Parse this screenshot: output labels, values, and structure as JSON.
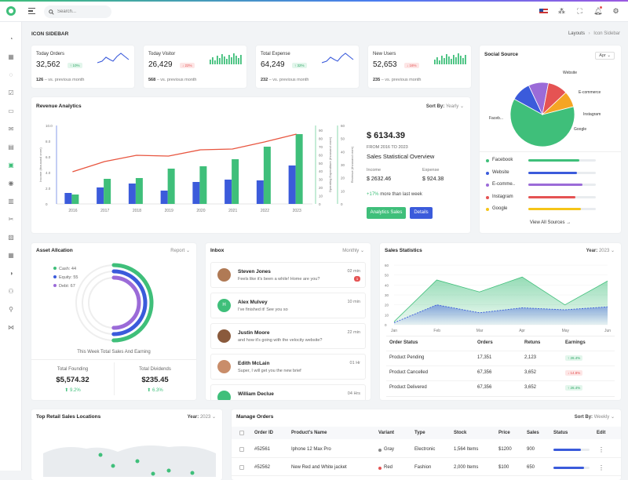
{
  "colors": {
    "accent": "#3fbf7a",
    "blue": "#3b5bdb",
    "red": "#e55353",
    "purple": "#9b6bd8",
    "orange": "#f5a524",
    "yellow": "#f5c518"
  },
  "search": {
    "placeholder": "Search..."
  },
  "page": {
    "title": "ICON SIDEBAR",
    "breadcrumb": [
      "Layouts",
      "Icon Sidebar"
    ]
  },
  "stats": [
    {
      "label": "Today Orders",
      "value": "32,562",
      "badge": "↑ 10%",
      "trend": "up",
      "footer_value": "126",
      "footer_text": "– vs. previous month",
      "spark": "line",
      "color": "#3b5bdb"
    },
    {
      "label": "Today Visitor",
      "value": "26,429",
      "badge": "↓ 22%",
      "trend": "down",
      "footer_value": "568",
      "footer_text": "– vs. previous month",
      "spark": "bar",
      "color": "#3fbf7a"
    },
    {
      "label": "Total Expense",
      "value": "64,249",
      "badge": "↑ 32%",
      "trend": "up",
      "footer_value": "232",
      "footer_text": "– vs. previous month",
      "spark": "line",
      "color": "#3b5bdb"
    },
    {
      "label": "New Users",
      "value": "52,653",
      "badge": "↓ 16%",
      "trend": "down",
      "footer_value": "235",
      "footer_text": "– vs. previous month",
      "spark": "bar",
      "color": "#3fbf7a"
    }
  ],
  "social": {
    "title": "Social Source",
    "select": "Apr",
    "footer": "View All Sources →",
    "items": [
      {
        "name": "Facebook",
        "color": "#3fbf7a",
        "value": 0.75
      },
      {
        "name": "Website",
        "color": "#3b5bdb",
        "value": 0.72
      },
      {
        "name": "E-commerce",
        "short": "E-comme..",
        "color": "#9b6bd8",
        "value": 0.8
      },
      {
        "name": "Instagram",
        "color": "#e55353",
        "value": 0.7
      },
      {
        "name": "Google",
        "color": "#f5c518",
        "value": 0.78
      }
    ],
    "pie_labels": [
      "Faceb...",
      "Website",
      "E-commerce",
      "Instagram",
      "Google"
    ]
  },
  "revenue": {
    "title": "Revenue Analytics",
    "sort_label": "Sort By:",
    "sort_value": "Yearly",
    "amount": "$ 6134.39",
    "range": "FROM 2016 TO 2023",
    "subtitle": "Sales Statistical Overview",
    "income_label": "Income",
    "income_value": "$ 2632.46",
    "expense_label": "Expense",
    "expense_value": "$ 924.38",
    "change_pct": "+17%",
    "change_text": "more than last week",
    "btn_analytics": "Analytics Sales",
    "btn_details": "Details",
    "ylabel_left": "Income (thousand crore)",
    "ylabel_mid": "Operating Expenditure (thousand crore)",
    "ylabel_right": "Revenue (thousand crore)"
  },
  "chart_data": [
    {
      "type": "bar",
      "title": "Revenue Analytics",
      "categories": [
        "2016",
        "2017",
        "2018",
        "2019",
        "2020",
        "2021",
        "2022",
        "2023"
      ],
      "ylim_left": [
        0,
        10
      ],
      "yticks_left": [
        "0",
        "2.0",
        "4.0",
        "6.0",
        "8.0",
        "10.0"
      ],
      "ylim_mid": [
        0,
        100
      ],
      "yticks_mid": [
        "0",
        "10",
        "20",
        "30",
        "40",
        "50",
        "60",
        "70",
        "80",
        "90"
      ],
      "ylim_right": [
        0,
        60
      ],
      "yticks_right": [
        "0",
        "10",
        "20",
        "30",
        "40",
        "50",
        "60"
      ],
      "series": [
        {
          "color": "#3b5bdb",
          "values": [
            1.4,
            2.1,
            2.6,
            1.7,
            2.8,
            3.1,
            3.0,
            4.9
          ]
        },
        {
          "color": "#3fbf7a",
          "values": [
            1.2,
            3.2,
            3.3,
            4.5,
            4.8,
            5.7,
            7.3,
            8.9
          ]
        },
        {
          "color": "#e8553f",
          "values": [
            4.1,
            5.4,
            6.2,
            6.1,
            6.9,
            7.0,
            7.9,
            8.9
          ]
        }
      ]
    },
    {
      "type": "area",
      "title": "Sales Statistics",
      "categories": [
        "Jan",
        "Feb",
        "Mar",
        "Apr",
        "May",
        "Jun"
      ],
      "ylim": [
        0,
        60
      ],
      "yticks": [
        "0",
        "10",
        "20",
        "30",
        "40",
        "50",
        "60"
      ],
      "series": [
        {
          "color": "#3fbf7a",
          "values": [
            3,
            45,
            33,
            48,
            20,
            44
          ]
        },
        {
          "color": "#3b5bdb",
          "values": [
            2,
            20,
            12,
            17,
            15,
            18
          ]
        }
      ]
    }
  ],
  "asset": {
    "title": "Asset Allcation",
    "select": "Report",
    "legend": [
      {
        "label": "Cash: 44",
        "color": "#3fbf7a",
        "value": 44
      },
      {
        "label": "Equity: 55",
        "color": "#3b5bdb",
        "value": 55
      },
      {
        "label": "Debt: 67",
        "color": "#9b6bd8",
        "value": 67
      }
    ],
    "caption": "This Week Total Sales And Earning",
    "founding_label": "Total Founding",
    "founding_value": "$5,574.32",
    "founding_pct": "9.2%",
    "dividends_label": "Total Dividends",
    "dividends_value": "$235.45",
    "dividends_pct": "6.3%"
  },
  "inbox": {
    "title": "Inbox",
    "select": "Monthly",
    "messages": [
      {
        "name": "Steven Jones",
        "text": "Feels like it's been a while! Home are you?",
        "time": "02 min",
        "unread": "1",
        "avatar": "photo",
        "color": "#b07a55"
      },
      {
        "name": "Alex Mulvey",
        "text": "I've finished it! See you so",
        "time": "10 min",
        "avatar": "H",
        "color": "#3fbf7a"
      },
      {
        "name": "Justin Moore",
        "text": "and how it's going with the velocity website?",
        "time": "22 min",
        "avatar": "photo",
        "color": "#8a5a3c"
      },
      {
        "name": "Edith McLain",
        "text": "Super, I will get you the new brief",
        "time": "01 Hr",
        "avatar": "photo",
        "color": "#c98d6a"
      },
      {
        "name": "William Declue",
        "text": "",
        "time": "04 Hrs",
        "avatar": "",
        "color": "#3fbf7a"
      }
    ]
  },
  "sales": {
    "title": "Sales Statistics",
    "select_label": "Year:",
    "select_value": "2023",
    "headers": [
      "Order Status",
      "Orders",
      "Retuns",
      "Earnings"
    ],
    "rows": [
      {
        "status": "Product Pending",
        "orders": "17,351",
        "returns": "2,123",
        "earn": "↑ 26.4%",
        "trend": "up"
      },
      {
        "status": "Product Cancelled",
        "orders": "67,356",
        "returns": "3,652",
        "earn": "↓ 14.8%",
        "trend": "down"
      },
      {
        "status": "Product Delivered",
        "orders": "67,356",
        "returns": "3,652",
        "earn": "↑ 26.4%",
        "trend": "up"
      }
    ]
  },
  "locations": {
    "title": "Top Retail Sales Locations",
    "select_label": "Year:",
    "select_value": "2023"
  },
  "orders": {
    "title": "Manage Orders",
    "sort_label": "Sort By:",
    "sort_value": "Weekly",
    "headers": [
      "Order ID",
      "Product's Name",
      "Variant",
      "Type",
      "Stock",
      "Price",
      "Sales",
      "Status",
      "Edit"
    ],
    "rows": [
      {
        "id": "#52561",
        "name": "Iphone 12 Max Pro",
        "variant": "Gray",
        "variant_color": "#888",
        "type": "Electronic",
        "stock": "1,564 Items",
        "price": "$1200",
        "sales": "900",
        "status": 0.75
      },
      {
        "id": "#52562",
        "name": "New Red and White jacket",
        "variant": "Red",
        "variant_color": "#e55353",
        "type": "Fashion",
        "stock": "2,000 Items",
        "price": "$100",
        "sales": "650",
        "status": 0.85
      }
    ]
  }
}
